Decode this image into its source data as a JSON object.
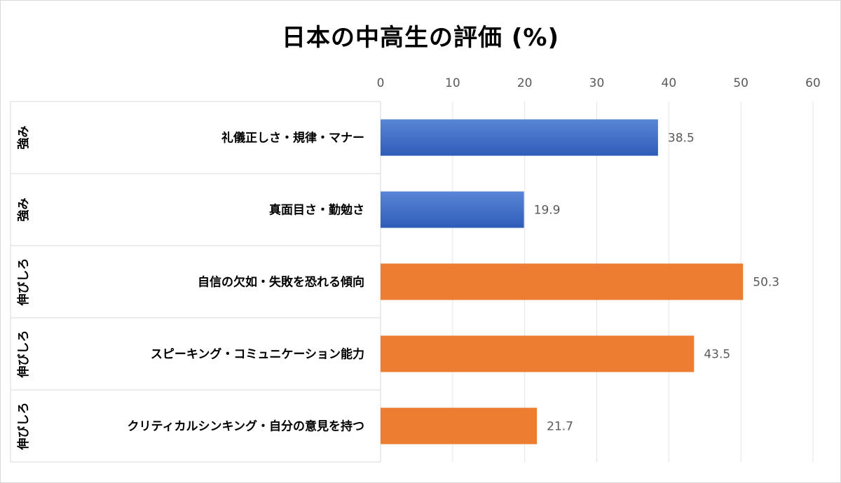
{
  "chart_data": {
    "type": "bar",
    "orientation": "horizontal",
    "title": "日本の中高生の評価 (%)",
    "xlim": [
      0,
      60
    ],
    "xticks": [
      0,
      10,
      20,
      30,
      40,
      50,
      60
    ],
    "axis_position": "top",
    "grid": true,
    "legend": "none",
    "categories": [
      "礼儀正しさ・規律・マナー",
      "真面目さ・勤勉さ",
      "自信の欠如・失敗を恐れる傾向",
      "スピーキング・コミュニケーション能力",
      "クリティカルシンキング・自分の意見を持つ"
    ],
    "groups": [
      "強み",
      "強み",
      "伸びしろ",
      "伸びしろ",
      "伸びしろ"
    ],
    "values": [
      38.5,
      19.9,
      50.3,
      43.5,
      21.7
    ],
    "colors": {
      "強み": "#4472c4",
      "伸びしろ": "#ed7d31"
    }
  }
}
